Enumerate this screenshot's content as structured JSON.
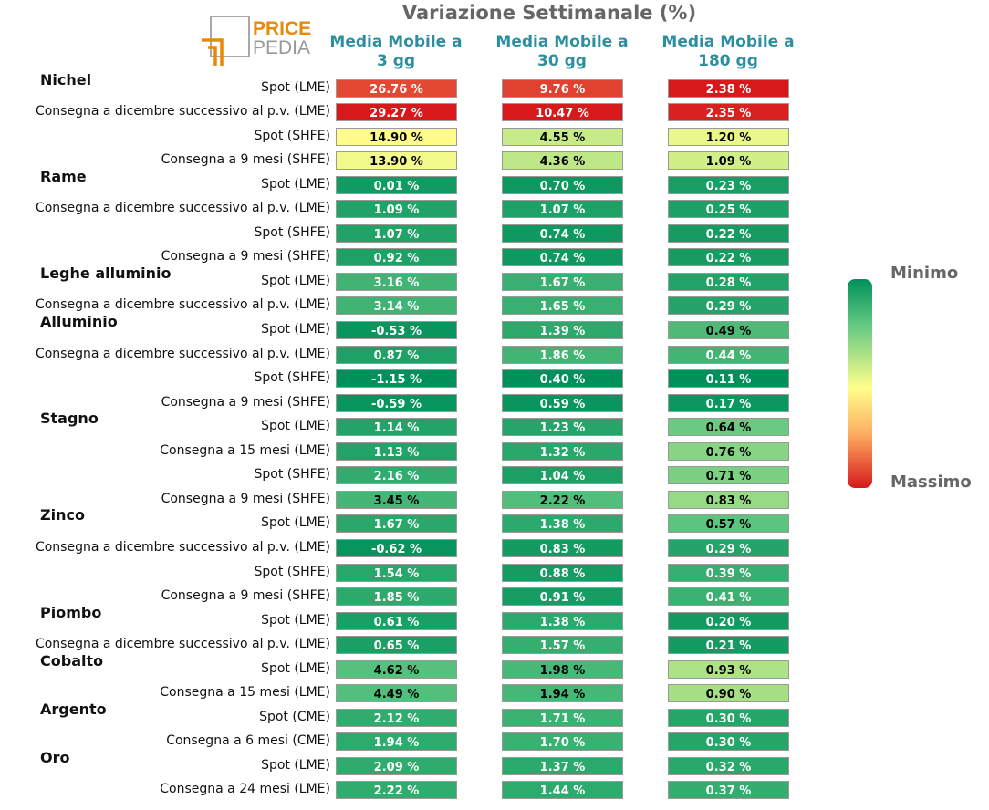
{
  "title": "Variazione Settimanale (%)",
  "logo": {
    "line1": "PRICE",
    "line2": "PEDIA",
    "primary_color": "#e8890c",
    "secondary_color": "#999999"
  },
  "legend": {
    "top_label": "Minimo",
    "bottom_label": "Massimo",
    "colors": [
      "#00905a",
      "#64c882",
      "#ffff8c",
      "#fdae61",
      "#d7191c"
    ]
  },
  "chart_data": {
    "type": "heatmap",
    "title": "Variazione Settimanale (%)",
    "columns": [
      {
        "line1": "Media Mobile a",
        "line2": "3 gg"
      },
      {
        "line1": "Media Mobile a",
        "line2": "30 gg"
      },
      {
        "line1": "Media Mobile a",
        "line2": "180 gg"
      }
    ],
    "groups": [
      {
        "name": "Nichel",
        "rows": [
          {
            "label": "Spot (LME)",
            "values": [
              26.76,
              9.76,
              2.38
            ]
          },
          {
            "label": "Consegna a dicembre successivo al p.v. (LME)",
            "values": [
              29.27,
              10.47,
              2.35
            ]
          },
          {
            "label": "Spot (SHFE)",
            "values": [
              14.9,
              4.55,
              1.2
            ]
          },
          {
            "label": "Consegna a 9 mesi (SHFE)",
            "values": [
              13.9,
              4.36,
              1.09
            ]
          }
        ]
      },
      {
        "name": "Rame",
        "rows": [
          {
            "label": "Spot (LME)",
            "values": [
              0.01,
              0.7,
              0.23
            ]
          },
          {
            "label": "Consegna a dicembre successivo al p.v. (LME)",
            "values": [
              1.09,
              1.07,
              0.25
            ]
          },
          {
            "label": "Spot (SHFE)",
            "values": [
              1.07,
              0.74,
              0.22
            ]
          },
          {
            "label": "Consegna a 9 mesi (SHFE)",
            "values": [
              0.92,
              0.74,
              0.22
            ]
          }
        ]
      },
      {
        "name": "Leghe alluminio",
        "rows": [
          {
            "label": "Spot (LME)",
            "values": [
              3.16,
              1.67,
              0.28
            ]
          },
          {
            "label": "Consegna a dicembre successivo al p.v. (LME)",
            "values": [
              3.14,
              1.65,
              0.29
            ]
          }
        ]
      },
      {
        "name": "Alluminio",
        "rows": [
          {
            "label": "Spot (LME)",
            "values": [
              -0.53,
              1.39,
              0.49
            ]
          },
          {
            "label": "Consegna a dicembre successivo al p.v. (LME)",
            "values": [
              0.87,
              1.86,
              0.44
            ]
          },
          {
            "label": "Spot (SHFE)",
            "values": [
              -1.15,
              0.4,
              0.11
            ]
          },
          {
            "label": "Consegna a 9 mesi (SHFE)",
            "values": [
              -0.59,
              0.59,
              0.17
            ]
          }
        ]
      },
      {
        "name": "Stagno",
        "rows": [
          {
            "label": "Spot (LME)",
            "values": [
              1.14,
              1.23,
              0.64
            ]
          },
          {
            "label": "Consegna a 15 mesi (LME)",
            "values": [
              1.13,
              1.32,
              0.76
            ]
          },
          {
            "label": "Spot (SHFE)",
            "values": [
              2.16,
              1.04,
              0.71
            ]
          },
          {
            "label": "Consegna a 9 mesi (SHFE)",
            "values": [
              3.45,
              2.22,
              0.83
            ]
          }
        ]
      },
      {
        "name": "Zinco",
        "rows": [
          {
            "label": "Spot (LME)",
            "values": [
              1.67,
              1.38,
              0.57
            ]
          },
          {
            "label": "Consegna a dicembre successivo al p.v. (LME)",
            "values": [
              -0.62,
              0.83,
              0.29
            ]
          },
          {
            "label": "Spot (SHFE)",
            "values": [
              1.54,
              0.88,
              0.39
            ]
          },
          {
            "label": "Consegna a 9 mesi (SHFE)",
            "values": [
              1.85,
              0.91,
              0.41
            ]
          }
        ]
      },
      {
        "name": "Piombo",
        "rows": [
          {
            "label": "Spot (LME)",
            "values": [
              0.61,
              1.38,
              0.2
            ]
          },
          {
            "label": "Consegna a dicembre successivo al p.v. (LME)",
            "values": [
              0.65,
              1.57,
              0.21
            ]
          }
        ]
      },
      {
        "name": "Cobalto",
        "rows": [
          {
            "label": "Spot (LME)",
            "values": [
              4.62,
              1.98,
              0.93
            ]
          },
          {
            "label": "Consegna a 15 mesi (LME)",
            "values": [
              4.49,
              1.94,
              0.9
            ]
          }
        ]
      },
      {
        "name": "Argento",
        "rows": [
          {
            "label": "Spot (CME)",
            "values": [
              2.12,
              1.71,
              0.3
            ]
          },
          {
            "label": "Consegna a 6 mesi (CME)",
            "values": [
              1.94,
              1.7,
              0.3
            ]
          }
        ]
      },
      {
        "name": "Oro",
        "rows": [
          {
            "label": "Spot (LME)",
            "values": [
              2.09,
              1.37,
              0.32
            ]
          },
          {
            "label": "Consegna a 24 mesi (LME)",
            "values": [
              2.22,
              1.44,
              0.37
            ]
          }
        ]
      }
    ]
  }
}
